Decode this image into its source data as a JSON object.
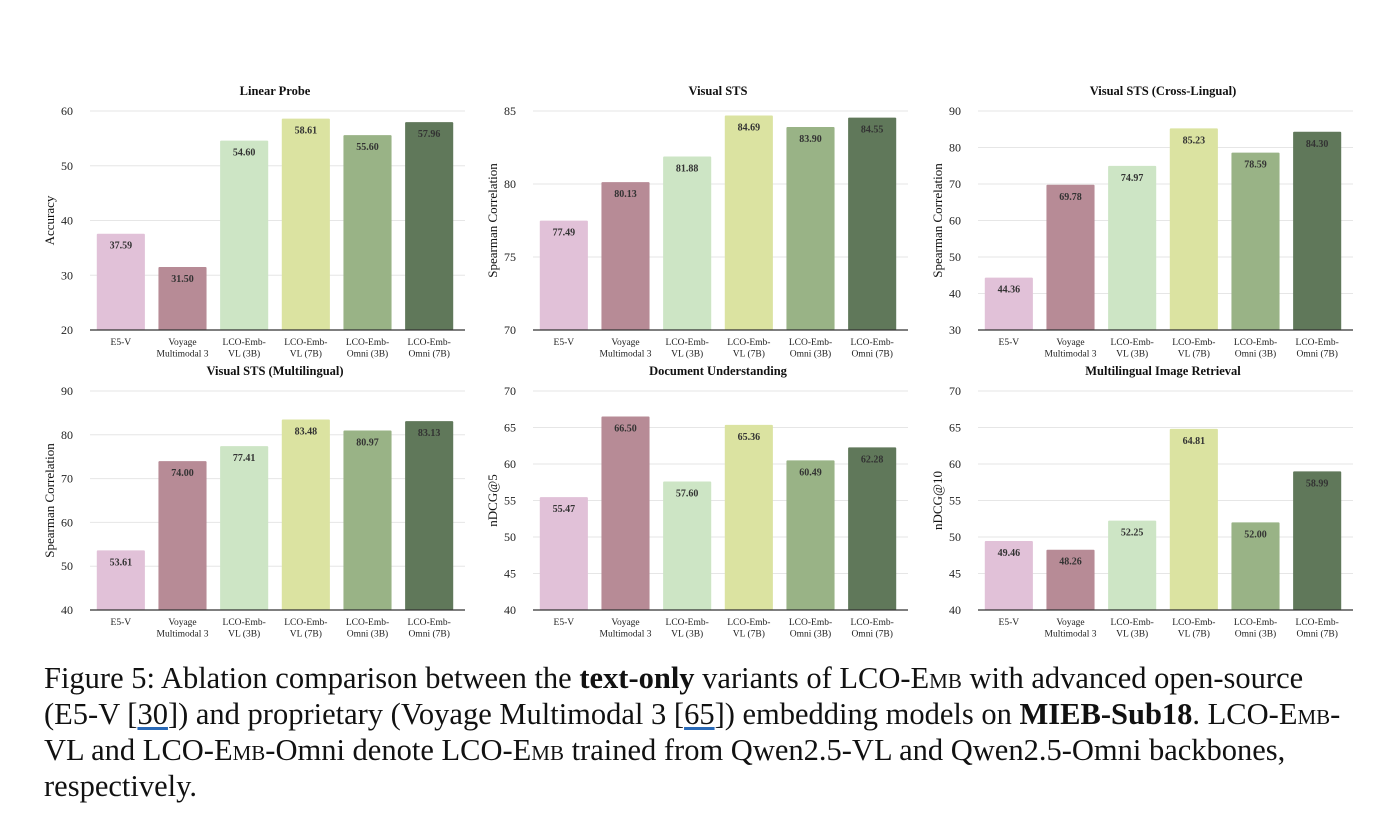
{
  "figure": {
    "models": [
      "E5-V",
      "Voyage Multimodal 3",
      "LCO-Emb-VL (3B)",
      "LCO-Emb-VL (7B)",
      "LCO-Emb-Omni (3B)",
      "LCO-Emb-Omni (7B)"
    ],
    "tick_labels": [
      [
        "E5-V"
      ],
      [
        "Voyage",
        "Multimodal 3"
      ],
      [
        "LCO-Emb-",
        "VL (3B)"
      ],
      [
        "LCO-Emb-",
        "VL (7B)"
      ],
      [
        "LCO-Emb-",
        "Omni (3B)"
      ],
      [
        "LCO-Emb-",
        "Omni (7B)"
      ]
    ],
    "colors": [
      "#e1c1d8",
      "#b78b96",
      "#cde5c5",
      "#dbe3a1",
      "#99b386",
      "#60785a"
    ]
  },
  "chart_data": [
    {
      "type": "bar",
      "title": "Linear Probe",
      "xlabel": "",
      "ylabel": "Accuracy",
      "categories": [
        "E5-V",
        "Voyage Multimodal 3",
        "LCO-Emb-VL (3B)",
        "LCO-Emb-VL (7B)",
        "LCO-Emb-Omni (3B)",
        "LCO-Emb-Omni (7B)"
      ],
      "values": [
        37.59,
        31.5,
        54.6,
        58.61,
        55.6,
        57.96
      ],
      "value_labels": [
        "37.59",
        "31.50",
        "54.60",
        "58.61",
        "55.60",
        "57.96"
      ],
      "ylim": [
        20,
        60
      ],
      "yticks": [
        20,
        30,
        40,
        50,
        60
      ],
      "grid": true
    },
    {
      "type": "bar",
      "title": "Visual STS",
      "xlabel": "",
      "ylabel": "Spearman Correlation",
      "categories": [
        "E5-V",
        "Voyage Multimodal 3",
        "LCO-Emb-VL (3B)",
        "LCO-Emb-VL (7B)",
        "LCO-Emb-Omni (3B)",
        "LCO-Emb-Omni (7B)"
      ],
      "values": [
        77.49,
        80.13,
        81.88,
        84.69,
        83.9,
        84.55
      ],
      "value_labels": [
        "77.49",
        "80.13",
        "81.88",
        "84.69",
        "83.90",
        "84.55"
      ],
      "ylim": [
        70,
        85
      ],
      "yticks": [
        70,
        75,
        80,
        85
      ],
      "grid": true
    },
    {
      "type": "bar",
      "title": "Visual STS (Cross-Lingual)",
      "xlabel": "",
      "ylabel": "Spearman Correlation",
      "categories": [
        "E5-V",
        "Voyage Multimodal 3",
        "LCO-Emb-VL (3B)",
        "LCO-Emb-VL (7B)",
        "LCO-Emb-Omni (3B)",
        "LCO-Emb-Omni (7B)"
      ],
      "values": [
        44.36,
        69.78,
        74.97,
        85.23,
        78.59,
        84.3
      ],
      "value_labels": [
        "44.36",
        "69.78",
        "74.97",
        "85.23",
        "78.59",
        "84.30"
      ],
      "ylim": [
        30,
        90
      ],
      "yticks": [
        30,
        40,
        50,
        60,
        70,
        80,
        90
      ],
      "grid": true
    },
    {
      "type": "bar",
      "title": "Visual STS (Multilingual)",
      "xlabel": "",
      "ylabel": "Spearman Correlation",
      "categories": [
        "E5-V",
        "Voyage Multimodal 3",
        "LCO-Emb-VL (3B)",
        "LCO-Emb-VL (7B)",
        "LCO-Emb-Omni (3B)",
        "LCO-Emb-Omni (7B)"
      ],
      "values": [
        53.61,
        74.0,
        77.41,
        83.48,
        80.97,
        83.13
      ],
      "value_labels": [
        "53.61",
        "74.00",
        "77.41",
        "83.48",
        "80.97",
        "83.13"
      ],
      "ylim": [
        40,
        90
      ],
      "yticks": [
        40,
        50,
        60,
        70,
        80,
        90
      ],
      "grid": true
    },
    {
      "type": "bar",
      "title": "Document Understanding",
      "xlabel": "",
      "ylabel": "nDCG@5",
      "categories": [
        "E5-V",
        "Voyage Multimodal 3",
        "LCO-Emb-VL (3B)",
        "LCO-Emb-VL (7B)",
        "LCO-Emb-Omni (3B)",
        "LCO-Emb-Omni (7B)"
      ],
      "values": [
        55.47,
        66.5,
        57.6,
        65.36,
        60.49,
        62.28
      ],
      "value_labels": [
        "55.47",
        "66.50",
        "57.60",
        "65.36",
        "60.49",
        "62.28"
      ],
      "ylim": [
        40,
        70
      ],
      "yticks": [
        40,
        45,
        50,
        55,
        60,
        65,
        70
      ],
      "grid": true
    },
    {
      "type": "bar",
      "title": "Multilingual Image Retrieval",
      "xlabel": "",
      "ylabel": "nDCG@10",
      "categories": [
        "E5-V",
        "Voyage Multimodal 3",
        "LCO-Emb-VL (3B)",
        "LCO-Emb-VL (7B)",
        "LCO-Emb-Omni (3B)",
        "LCO-Emb-Omni (7B)"
      ],
      "values": [
        49.46,
        48.26,
        52.25,
        64.81,
        52.0,
        58.99
      ],
      "value_labels": [
        "49.46",
        "48.26",
        "52.25",
        "64.81",
        "52.00",
        "58.99"
      ],
      "ylim": [
        40,
        70
      ],
      "yticks": [
        40,
        45,
        50,
        55,
        60,
        65,
        70
      ],
      "grid": true
    }
  ],
  "caption": {
    "prefix": "Figure 5: Ablation comparison between the ",
    "bold1": "text-only",
    "t2": " variants of LCO-",
    "sc1": "Emb",
    "t3": " with advanced open-source (E5-V [",
    "ref1": "30",
    "t4": "]) and proprietary (Voyage Multimodal 3 [",
    "ref2": "65",
    "t5": "]) embedding models on ",
    "bold2": "MIEB-Sub18",
    "t6": ". LCO-",
    "sc2": "Emb",
    "t7": "-VL and LCO-",
    "sc3": "Emb",
    "t8": "-Omni denote LCO-",
    "sc4": "Emb",
    "t9": " trained from Qwen2.5-VL and Qwen2.5-Omni backbones, respectively."
  }
}
